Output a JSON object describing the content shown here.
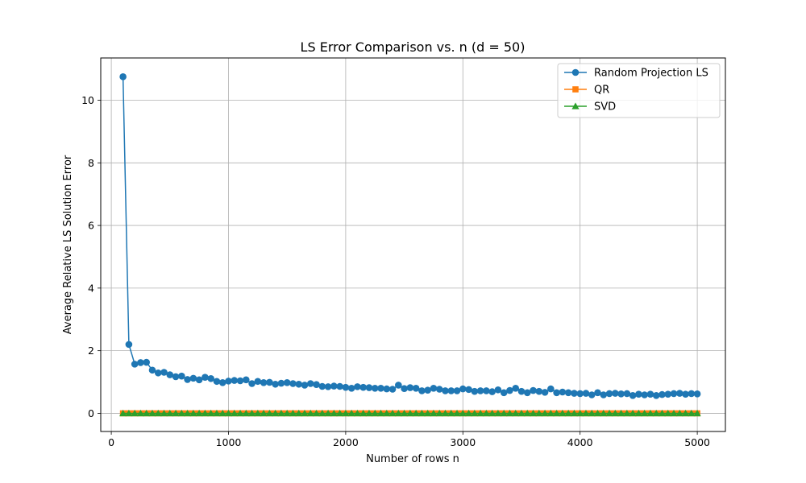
{
  "chart_data": {
    "type": "line",
    "title": "LS Error Comparison vs. n (d = 50)",
    "xlabel": "Number of rows n",
    "ylabel": "Average Relative LS Solution Error",
    "xlim": [
      -90,
      5240
    ],
    "ylim": [
      -0.58,
      11.35
    ],
    "xticks": [
      0,
      1000,
      2000,
      3000,
      4000,
      5000
    ],
    "yticks": [
      0,
      2,
      4,
      6,
      8,
      10
    ],
    "grid": true,
    "legend_position": "top-right",
    "x": [
      100,
      150,
      200,
      250,
      300,
      350,
      400,
      450,
      500,
      550,
      600,
      650,
      700,
      750,
      800,
      850,
      900,
      950,
      1000,
      1050,
      1100,
      1150,
      1200,
      1250,
      1300,
      1350,
      1400,
      1450,
      1500,
      1550,
      1600,
      1650,
      1700,
      1750,
      1800,
      1850,
      1900,
      1950,
      2000,
      2050,
      2100,
      2150,
      2200,
      2250,
      2300,
      2350,
      2400,
      2450,
      2500,
      2550,
      2600,
      2650,
      2700,
      2750,
      2800,
      2850,
      2900,
      2950,
      3000,
      3050,
      3100,
      3150,
      3200,
      3250,
      3300,
      3350,
      3400,
      3450,
      3500,
      3550,
      3600,
      3650,
      3700,
      3750,
      3800,
      3850,
      3900,
      3950,
      4000,
      4050,
      4100,
      4150,
      4200,
      4250,
      4300,
      4350,
      4400,
      4450,
      4500,
      4550,
      4600,
      4650,
      4700,
      4750,
      4800,
      4850,
      4900,
      4950,
      5000
    ],
    "series": [
      {
        "name": "Random Projection LS",
        "color": "#1f77b4",
        "marker": "circle",
        "values": [
          10.75,
          2.2,
          1.57,
          1.62,
          1.63,
          1.38,
          1.29,
          1.31,
          1.23,
          1.17,
          1.19,
          1.08,
          1.12,
          1.07,
          1.15,
          1.11,
          1.02,
          0.98,
          1.03,
          1.05,
          1.04,
          1.07,
          0.95,
          1.02,
          0.98,
          0.99,
          0.93,
          0.96,
          0.98,
          0.95,
          0.93,
          0.9,
          0.95,
          0.92,
          0.86,
          0.85,
          0.87,
          0.86,
          0.83,
          0.8,
          0.85,
          0.83,
          0.82,
          0.8,
          0.8,
          0.78,
          0.77,
          0.9,
          0.79,
          0.82,
          0.8,
          0.72,
          0.74,
          0.8,
          0.77,
          0.72,
          0.72,
          0.72,
          0.78,
          0.76,
          0.7,
          0.72,
          0.72,
          0.69,
          0.75,
          0.66,
          0.73,
          0.8,
          0.7,
          0.66,
          0.73,
          0.7,
          0.67,
          0.78,
          0.66,
          0.68,
          0.66,
          0.64,
          0.63,
          0.64,
          0.59,
          0.66,
          0.59,
          0.63,
          0.64,
          0.62,
          0.63,
          0.57,
          0.61,
          0.59,
          0.61,
          0.57,
          0.6,
          0.61,
          0.63,
          0.64,
          0.61,
          0.63,
          0.62
        ]
      },
      {
        "name": "QR",
        "color": "#ff7f0e",
        "marker": "square",
        "constant_value": 0.0
      },
      {
        "name": "SVD",
        "color": "#2ca02c",
        "marker": "triangle",
        "constant_value": 0.0
      }
    ]
  }
}
